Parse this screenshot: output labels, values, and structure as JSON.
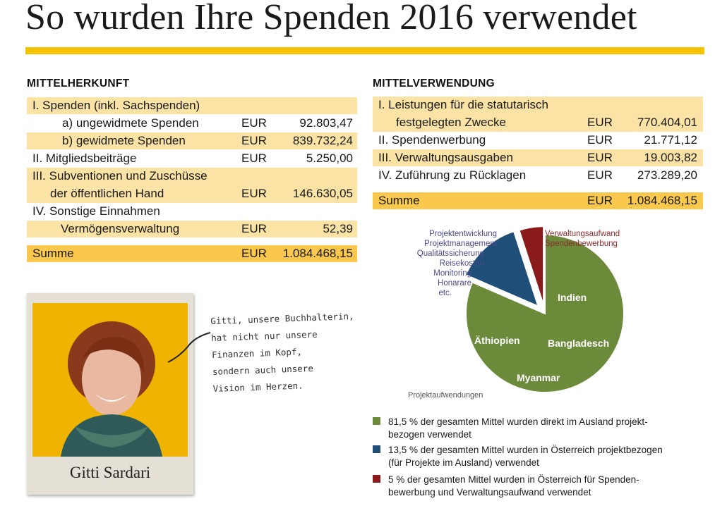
{
  "title": "So wurden Ihre Spenden 2016 verwendet",
  "colors": {
    "accent_yellow": "#f5c400",
    "band_light": "#fbe3a6",
    "band_sum": "#f9c84c",
    "green": "#6b8a3a",
    "blue": "#1f4e79",
    "red": "#8b1a1a"
  },
  "herkunft": {
    "heading": "MITTELHERKUNFT",
    "rows": [
      {
        "label": "I.  Spenden (inkl. Sachspenden)",
        "cur": "",
        "amount": ""
      },
      {
        "label": "a) ungewidmete Spenden",
        "cur": "EUR",
        "amount": "92.803,47"
      },
      {
        "label": "b) gewidmete Spenden",
        "cur": "EUR",
        "amount": "839.732,24"
      },
      {
        "label": "II.  Mitgliedsbeiträge",
        "cur": "EUR",
        "amount": "5.250,00"
      },
      {
        "label1": "III. Subventionen und Zuschüsse",
        "label2": "der öffentlichen Hand",
        "cur": "EUR",
        "amount": "146.630,05"
      },
      {
        "label": "IV. Sonstige Einnahmen",
        "cur": "",
        "amount": ""
      },
      {
        "label": "Vermögensverwaltung",
        "cur": "EUR",
        "amount": "52,39"
      }
    ],
    "sum": {
      "label": "Summe",
      "cur": "EUR",
      "amount": "1.084.468,15"
    }
  },
  "verwendung": {
    "heading": "MITTELVERWENDUNG",
    "rows": [
      {
        "label1": "I.   Leistungen für die statutarisch",
        "label2": "festgelegten Zwecke",
        "cur": "EUR",
        "amount": "770.404,01"
      },
      {
        "label": "II.  Spendenwerbung",
        "cur": "EUR",
        "amount": "21.771,12"
      },
      {
        "label": "III. Verwaltungsausgaben",
        "cur": "EUR",
        "amount": "19.003,82"
      },
      {
        "label": "IV. Zuführung zu Rücklagen",
        "cur": "EUR",
        "amount": "273.289,20"
      }
    ],
    "sum": {
      "label": "Summe",
      "cur": "EUR",
      "amount": "1.084.468,15"
    }
  },
  "photo": {
    "name": "Gitti Sardari",
    "caption_lines": [
      "Gitti, unsere Buchhalterin,",
      "hat nicht nur unsere",
      "Finanzen im Kopf,",
      "sondern auch unsere",
      "Vision im Herzen."
    ]
  },
  "chart_data": {
    "type": "pie",
    "slices": [
      {
        "value": 81.5,
        "color": "#6b8a3a"
      },
      {
        "value": 13.5,
        "color": "#1f4e79"
      },
      {
        "value": 5,
        "color": "#8b1a1a"
      }
    ],
    "labels_blue": [
      "Projektentwicklung",
      "Projektmanagement",
      "Qualitätssicherung",
      "Reisekosten",
      "Monitoring",
      "Honarare",
      "etc."
    ],
    "labels_red": [
      "Verwaltungsaufwand",
      "Spendenbewerbung"
    ],
    "labels_green": [
      "Indien",
      "Äthiopien",
      "Bangladesch",
      "Myanmar"
    ],
    "label_bottom": "Projektaufwendungen",
    "legend": [
      {
        "color": "#6b8a3a",
        "line1": "81,5 % der gesamten Mittel wurden direkt im Ausland projekt-",
        "line2": "bezogen verwendet"
      },
      {
        "color": "#1f4e79",
        "line1": "13,5 % der gesamten Mittel wurden in Österreich projektbezogen",
        "line2": "(für Projekte im Ausland) verwendet"
      },
      {
        "color": "#8b1a1a",
        "line1": "5 % der gesamten Mittel wurden in Österreich für Spenden-",
        "line2": "bewerbung und Verwaltungsaufwand verwendet"
      }
    ]
  }
}
